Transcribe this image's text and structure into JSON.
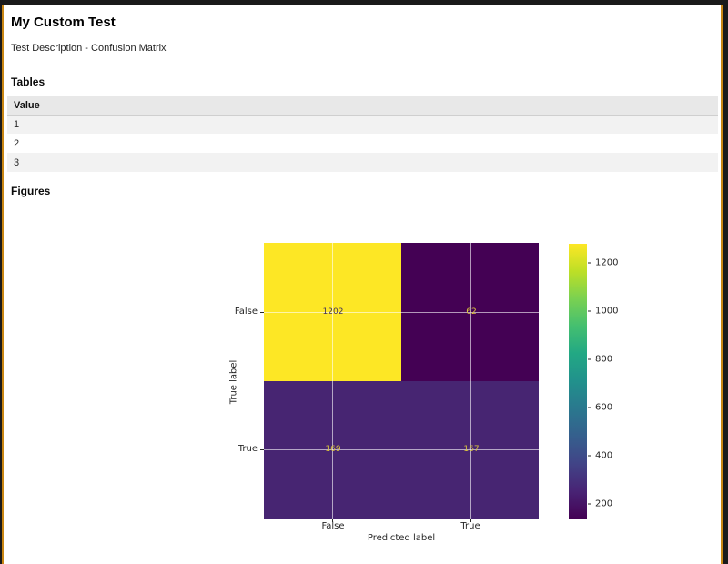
{
  "page": {
    "title": "My Custom Test",
    "description": "Test Description - Confusion Matrix",
    "tables_heading": "Tables",
    "figures_heading": "Figures"
  },
  "table": {
    "columns": [
      "Value"
    ],
    "rows": [
      "1",
      "2",
      "3"
    ]
  },
  "chart_data": {
    "type": "heatmap",
    "subtype": "confusion_matrix",
    "title": "",
    "xlabel": "Predicted label",
    "ylabel": "True label",
    "x_ticklabels": [
      "False",
      "True"
    ],
    "y_ticklabels": [
      "False",
      "True"
    ],
    "matrix_rows": [
      {
        "true_label": "False",
        "values": [
          1202,
          62
        ]
      },
      {
        "true_label": "True",
        "values": [
          169,
          167
        ]
      }
    ],
    "cells": [
      {
        "row": "False",
        "col": "False",
        "value": 1202,
        "color": "#fde725",
        "text_color": "#45345b"
      },
      {
        "row": "False",
        "col": "True",
        "value": 62,
        "color": "#440154",
        "text_color": "#dcc63c"
      },
      {
        "row": "True",
        "col": "False",
        "value": 169,
        "color": "#472572",
        "text_color": "#dcc63c"
      },
      {
        "row": "True",
        "col": "True",
        "value": 167,
        "color": "#472572",
        "text_color": "#dcc63c"
      }
    ],
    "colorbar": {
      "cmap": "viridis",
      "vmin": 62,
      "vmax": 1202,
      "ticks": [
        1200,
        1000,
        800,
        600,
        400,
        200
      ],
      "position": "right"
    },
    "grid": true
  },
  "colors": {
    "frame": "#1a1a1a",
    "accent_border": "#c98613",
    "table_header_bg": "#e8e8e8",
    "table_stripe": "#f2f2f2"
  }
}
